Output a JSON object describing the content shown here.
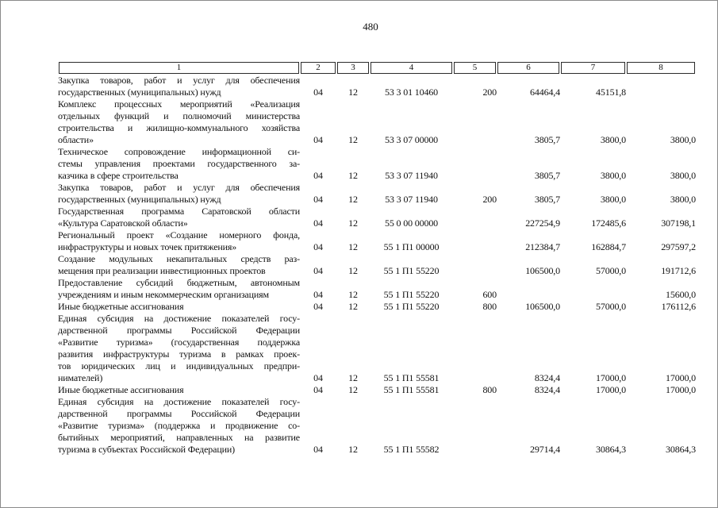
{
  "page_number": "480",
  "colors": {
    "text": "#111111",
    "table_border": "#2b2b2b",
    "page_frame": "#8a8a8a"
  },
  "table": {
    "columns": [
      "1",
      "2",
      "3",
      "4",
      "5",
      "6",
      "7",
      "8"
    ],
    "rows": [
      {
        "lines": [
          "Закупка товаров, работ и услуг для обеспечения",
          "государственных (муниципальных) нужд"
        ],
        "c2": "04",
        "c3": "12",
        "c4": "53 3 01 10460",
        "c5": "200",
        "c6": "64464,4",
        "c7": "45151,8",
        "c8": ""
      },
      {
        "lines": [
          "Комплекс процессных мероприятий «Реализация",
          "отдельных функций и полномочий министерства",
          "строительства и жилищно-коммунального хозяйства",
          "области»"
        ],
        "c2": "04",
        "c3": "12",
        "c4": "53 3 07 00000",
        "c5": "",
        "c6": "3805,7",
        "c7": "3800,0",
        "c8": "3800,0"
      },
      {
        "lines": [
          "Техническое сопровождение информационной си-",
          "стемы управления проектами государственного за-",
          "казчика в сфере строительства"
        ],
        "c2": "04",
        "c3": "12",
        "c4": "53 3 07 11940",
        "c5": "",
        "c6": "3805,7",
        "c7": "3800,0",
        "c8": "3800,0"
      },
      {
        "lines": [
          "Закупка товаров, работ и услуг для обеспечения",
          "государственных (муниципальных) нужд"
        ],
        "c2": "04",
        "c3": "12",
        "c4": "53 3 07 11940",
        "c5": "200",
        "c6": "3805,7",
        "c7": "3800,0",
        "c8": "3800,0"
      },
      {
        "lines": [
          "Государственная программа Саратовской области",
          "«Культура Саратовской области»"
        ],
        "c2": "04",
        "c3": "12",
        "c4": "55 0 00 00000",
        "c5": "",
        "c6": "227254,9",
        "c7": "172485,6",
        "c8": "307198,1"
      },
      {
        "lines": [
          "Региональный проект «Создание номерного фонда,",
          "инфраструктуры и новых точек притяжения»"
        ],
        "c2": "04",
        "c3": "12",
        "c4": "55 1 П1 00000",
        "c5": "",
        "c6": "212384,7",
        "c7": "162884,7",
        "c8": "297597,2"
      },
      {
        "lines": [
          "Создание модульных некапитальных средств раз-",
          "мещения при реализации инвестиционных проектов"
        ],
        "c2": "04",
        "c3": "12",
        "c4": "55 1 П1 55220",
        "c5": "",
        "c6": "106500,0",
        "c7": "57000,0",
        "c8": "191712,6"
      },
      {
        "lines": [
          "Предоставление субсидий бюджетным, автономным",
          "учреждениям и иным некоммерческим организациям"
        ],
        "c2": "04",
        "c3": "12",
        "c4": "55 1 П1 55220",
        "c5": "600",
        "c6": "",
        "c7": "",
        "c8": "15600,0"
      },
      {
        "lines": [
          "Иные бюджетные ассигнования"
        ],
        "c2": "04",
        "c3": "12",
        "c4": "55 1 П1 55220",
        "c5": "800",
        "c6": "106500,0",
        "c7": "57000,0",
        "c8": "176112,6"
      },
      {
        "lines": [
          "Единая субсидия на достижение показателей госу-",
          "дарственной программы Российской Федерации",
          "«Развитие туризма» (государственная поддержка",
          "развития инфраструктуры туризма в рамках проек-",
          "тов юридических лиц и индивидуальных предпри-",
          "нимателей)"
        ],
        "c2": "04",
        "c3": "12",
        "c4": "55 1 П1 55581",
        "c5": "",
        "c6": "8324,4",
        "c7": "17000,0",
        "c8": "17000,0"
      },
      {
        "lines": [
          "Иные бюджетные ассигнования"
        ],
        "c2": "04",
        "c3": "12",
        "c4": "55 1 П1 55581",
        "c5": "800",
        "c6": "8324,4",
        "c7": "17000,0",
        "c8": "17000,0"
      },
      {
        "lines": [
          "Единая субсидия на достижение показателей госу-",
          "дарственной программы Российской Федерации",
          "«Развитие туризма» (поддержка и продвижение со-",
          "бытийных мероприятий, направленных на развитие",
          "туризма в субъектах Российской Федерации)"
        ],
        "c2": "04",
        "c3": "12",
        "c4": "55 1 П1 55582",
        "c5": "",
        "c6": "29714,4",
        "c7": "30864,3",
        "c8": "30864,3"
      }
    ]
  }
}
